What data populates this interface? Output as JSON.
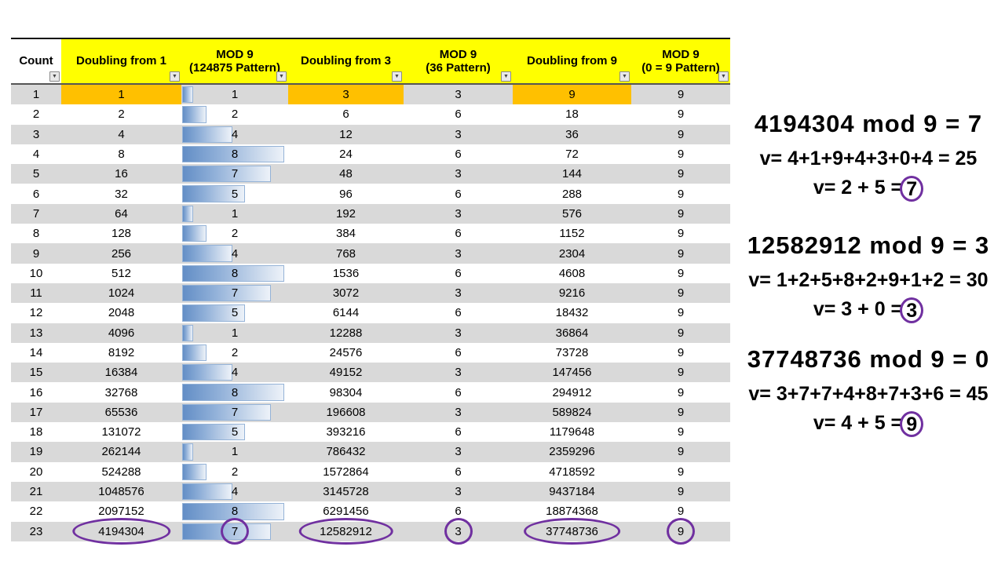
{
  "colors": {
    "header_yellow": "#FFFF00",
    "highlight_orange": "#FFC000",
    "row_grey": "#D9D9D9",
    "bar_blue": "#638EC6",
    "bar_border": "#95B3D7",
    "circle_purple": "#7030A0"
  },
  "table": {
    "columns": [
      {
        "label": "Count",
        "sub": ""
      },
      {
        "label": "Doubling from 1",
        "sub": ""
      },
      {
        "label": "MOD 9",
        "sub": "(124875 Pattern)"
      },
      {
        "label": "Doubling from 3",
        "sub": ""
      },
      {
        "label": "MOD 9",
        "sub": "(36 Pattern)"
      },
      {
        "label": "Doubling from 9",
        "sub": ""
      },
      {
        "label": "MOD 9",
        "sub": "(0 = 9 Pattern)"
      }
    ],
    "filter_icon": "▼",
    "rows": [
      [
        1,
        1,
        1,
        3,
        3,
        9,
        9
      ],
      [
        2,
        2,
        2,
        6,
        6,
        18,
        9
      ],
      [
        3,
        4,
        4,
        12,
        3,
        36,
        9
      ],
      [
        4,
        8,
        8,
        24,
        6,
        72,
        9
      ],
      [
        5,
        16,
        7,
        48,
        3,
        144,
        9
      ],
      [
        6,
        32,
        5,
        96,
        6,
        288,
        9
      ],
      [
        7,
        64,
        1,
        192,
        3,
        576,
        9
      ],
      [
        8,
        128,
        2,
        384,
        6,
        1152,
        9
      ],
      [
        9,
        256,
        4,
        768,
        3,
        2304,
        9
      ],
      [
        10,
        512,
        8,
        1536,
        6,
        4608,
        9
      ],
      [
        11,
        1024,
        7,
        3072,
        3,
        9216,
        9
      ],
      [
        12,
        2048,
        5,
        6144,
        6,
        18432,
        9
      ],
      [
        13,
        4096,
        1,
        12288,
        3,
        36864,
        9
      ],
      [
        14,
        8192,
        2,
        24576,
        6,
        73728,
        9
      ],
      [
        15,
        16384,
        4,
        49152,
        3,
        147456,
        9
      ],
      [
        16,
        32768,
        8,
        98304,
        6,
        294912,
        9
      ],
      [
        17,
        65536,
        7,
        196608,
        3,
        589824,
        9
      ],
      [
        18,
        131072,
        5,
        393216,
        6,
        1179648,
        9
      ],
      [
        19,
        262144,
        1,
        786432,
        3,
        2359296,
        9
      ],
      [
        20,
        524288,
        2,
        1572864,
        6,
        4718592,
        9
      ],
      [
        21,
        1048576,
        4,
        3145728,
        3,
        9437184,
        9
      ],
      [
        22,
        2097152,
        8,
        6291456,
        6,
        18874368,
        9
      ],
      [
        23,
        4194304,
        7,
        12582912,
        3,
        37748736,
        9
      ]
    ],
    "highlight_row1_columns": [
      1,
      3,
      5
    ],
    "circled_row": 23,
    "circled_row_columns": [
      1,
      2,
      3,
      4,
      5,
      6
    ],
    "bar_column": 2,
    "bar_max": 8
  },
  "annotations": [
    {
      "title": "4194304 mod 9 = 7",
      "line2": "v= 4+1+9+4+3+0+4 = 25",
      "line3_prefix": "v= 2 + 5 =",
      "circled_value": "7"
    },
    {
      "title": "12582912 mod 9 = 3",
      "line2": "v= 1+2+5+8+2+9+1+2 = 30",
      "line3_prefix": "v= 3 + 0 =",
      "circled_value": "3"
    },
    {
      "title": "37748736 mod 9 = 0",
      "line2": "v= 3+7+7+4+8+7+3+6 = 45",
      "line3_prefix": "v= 4 + 5 =",
      "circled_value": "9"
    }
  ]
}
